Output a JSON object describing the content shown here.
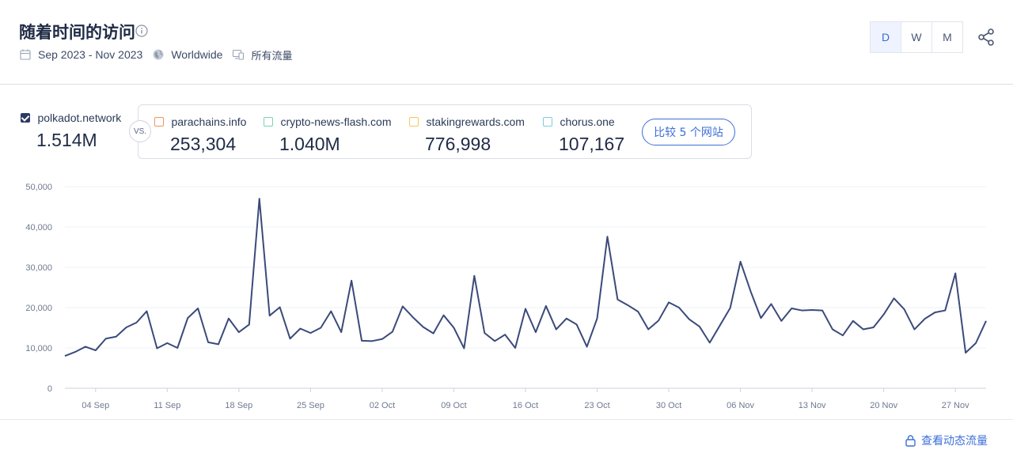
{
  "header": {
    "title": "随着时间的访问",
    "date_range": "Sep 2023 - Nov 2023",
    "region": "Worldwide",
    "traffic_type": "所有流量"
  },
  "granularity": {
    "options": [
      "D",
      "W",
      "M"
    ],
    "selected": "D"
  },
  "sites": {
    "main": {
      "name": "polkadot.network",
      "value": "1.514M",
      "checked": true,
      "color": "#2b3a63"
    },
    "vs_label": "VS.",
    "competitors": [
      {
        "name": "parachains.info",
        "value": "253,304",
        "color": "#f0935a"
      },
      {
        "name": "crypto-news-flash.com",
        "value": "1.040M",
        "color": "#7dd1b0"
      },
      {
        "name": "stakingrewards.com",
        "value": "776,998",
        "color": "#f5c75b"
      },
      {
        "name": "chorus.one",
        "value": "107,167",
        "color": "#7fcbe0"
      }
    ],
    "compare_button": "比较 5 个网站"
  },
  "footer": {
    "link_label": "查看动态流量"
  },
  "chart_data": {
    "type": "line",
    "ylim": [
      0,
      50000
    ],
    "yticks": [
      0,
      10000,
      20000,
      30000,
      40000,
      50000
    ],
    "ytick_labels": [
      "0",
      "10,000",
      "20,000",
      "30,000",
      "40,000",
      "50,000"
    ],
    "xtick_labels": [
      "04 Sep",
      "11 Sep",
      "18 Sep",
      "25 Sep",
      "02 Oct",
      "09 Oct",
      "16 Oct",
      "23 Oct",
      "30 Oct",
      "06 Nov",
      "13 Nov",
      "20 Nov",
      "27 Nov"
    ],
    "x_start": "2023-09-01",
    "x_end": "2023-11-30",
    "series": [
      {
        "color": "#3b4a7a",
        "values": [
          8000,
          9000,
          10300,
          9400,
          12300,
          12800,
          15100,
          16300,
          19100,
          9900,
          11200,
          10000,
          17400,
          19800,
          11400,
          10900,
          17300,
          13900,
          15800,
          47000,
          18000,
          20100,
          12300,
          14800,
          13700,
          15000,
          19100,
          13900,
          26700,
          11800,
          11700,
          12200,
          14000,
          20300,
          17600,
          15200,
          13600,
          18100,
          15000,
          9900,
          27900,
          13700,
          11700,
          13300,
          10000,
          19700,
          13900,
          20400,
          14600,
          17300,
          15800,
          10300,
          17300,
          37600,
          22000,
          20600,
          19000,
          14600,
          16800,
          21300,
          20000,
          17100,
          15300,
          11300,
          15600,
          19900,
          31400,
          24000,
          17400,
          20900,
          16700,
          19800,
          19300,
          19400,
          19300,
          14600,
          13100,
          16700,
          14600,
          15100,
          18300,
          22300,
          19600,
          14600,
          17200,
          18800,
          19300,
          28500,
          8800,
          11200,
          16700
        ]
      }
    ]
  }
}
